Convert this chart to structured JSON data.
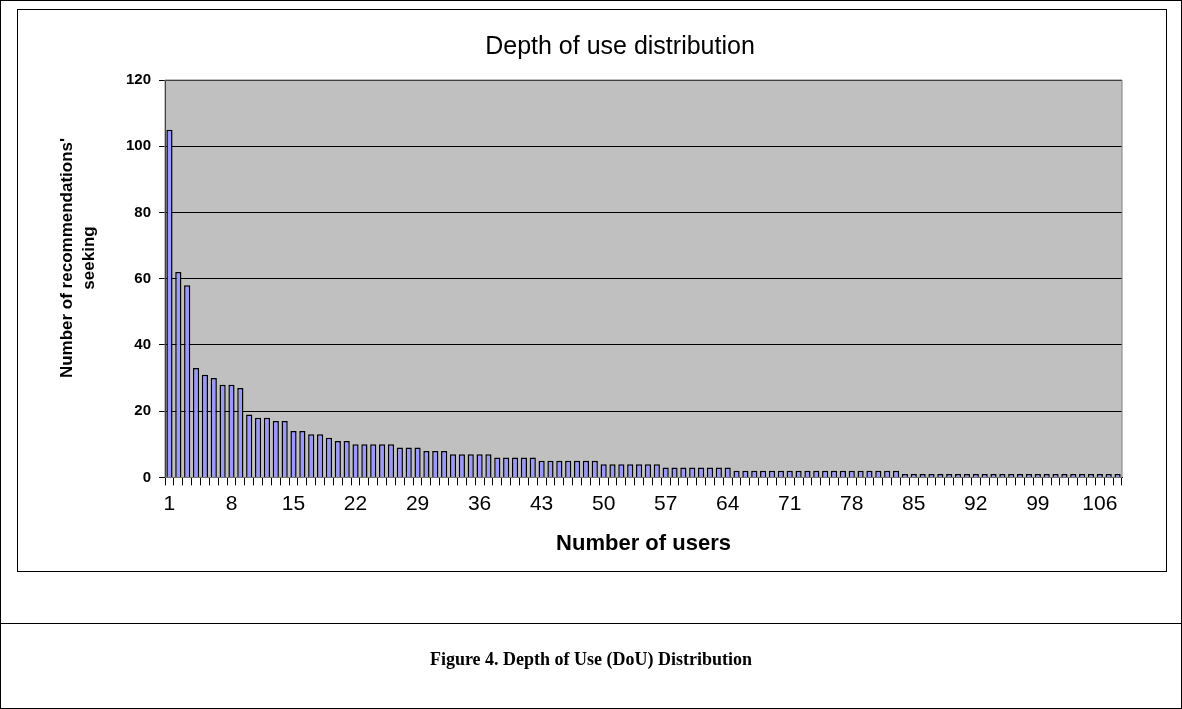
{
  "chart_data": {
    "type": "bar",
    "title": "Depth of use distribution",
    "xlabel": "Number of users",
    "ylabel": "Number of recommendations' seeking",
    "categories": [
      "1",
      null,
      null,
      null,
      null,
      null,
      null,
      "8",
      null,
      null,
      null,
      null,
      null,
      null,
      "15",
      null,
      null,
      null,
      null,
      null,
      null,
      "22",
      null,
      null,
      null,
      null,
      null,
      null,
      "29",
      null,
      null,
      null,
      null,
      null,
      null,
      "36",
      null,
      null,
      null,
      null,
      null,
      null,
      "43",
      null,
      null,
      null,
      null,
      null,
      null,
      "50",
      null,
      null,
      null,
      null,
      null,
      null,
      "57",
      null,
      null,
      null,
      null,
      null,
      null,
      "64",
      null,
      null,
      null,
      null,
      null,
      null,
      "71",
      null,
      null,
      null,
      null,
      null,
      null,
      "78",
      null,
      null,
      null,
      null,
      null,
      null,
      "85",
      null,
      null,
      null,
      null,
      null,
      null,
      "92",
      null,
      null,
      null,
      null,
      null,
      null,
      "99",
      null,
      null,
      null,
      null,
      null,
      null,
      "106",
      null,
      null
    ],
    "values": [
      105,
      62,
      58,
      33,
      31,
      30,
      28,
      28,
      27,
      19,
      18,
      18,
      17,
      17,
      14,
      14,
      13,
      13,
      12,
      11,
      11,
      10,
      10,
      10,
      10,
      10,
      9,
      9,
      9,
      8,
      8,
      8,
      7,
      7,
      7,
      7,
      7,
      6,
      6,
      6,
      6,
      6,
      5,
      5,
      5,
      5,
      5,
      5,
      5,
      4,
      4,
      4,
      4,
      4,
      4,
      4,
      3,
      3,
      3,
      3,
      3,
      3,
      3,
      3,
      2,
      2,
      2,
      2,
      2,
      2,
      2,
      2,
      2,
      2,
      2,
      2,
      2,
      2,
      2,
      2,
      2,
      2,
      2,
      1,
      1,
      1,
      1,
      1,
      1,
      1,
      1,
      1,
      1,
      1,
      1,
      1,
      1,
      1,
      1,
      1,
      1,
      1,
      1,
      1,
      1,
      1,
      1,
      1
    ],
    "color": "#9999ff",
    "ylim": [
      0,
      120
    ],
    "yticks": [
      0,
      20,
      40,
      60,
      80,
      100,
      120
    ],
    "grid": "y",
    "legend": false,
    "annotations": [
      "Figure 4. Depth of Use (DoU) Distribution"
    ]
  }
}
